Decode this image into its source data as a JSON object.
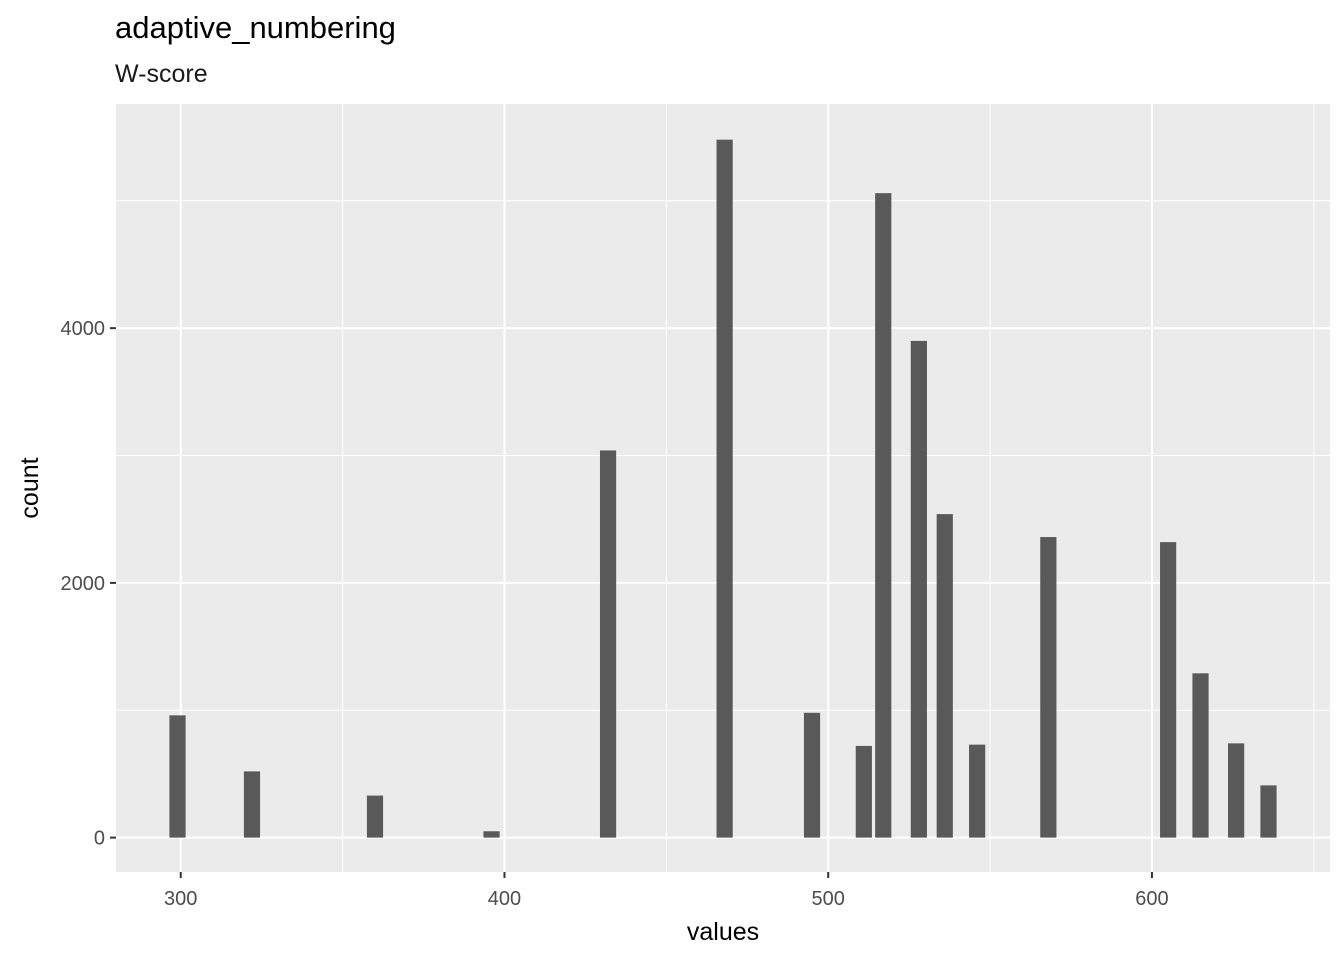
{
  "chart_data": {
    "type": "bar",
    "title": "adaptive_numbering",
    "subtitle": "W-score",
    "xlabel": "values",
    "ylabel": "count",
    "xlim": [
      280,
      655
    ],
    "ylim": [
      -270,
      5760
    ],
    "xticks": [
      300,
      400,
      500,
      600
    ],
    "yticks": [
      0,
      2000,
      4000
    ],
    "xtick_labels": [
      "300",
      "400",
      "500",
      "600"
    ],
    "ytick_labels": [
      "0",
      "2000",
      "4000"
    ],
    "bar_width": 5,
    "grid": true,
    "background": "#EBEBEB",
    "bar_color": "#595959",
    "grid_color": "#FFFFFF",
    "x": [
      299,
      322,
      360,
      396,
      432,
      468,
      495,
      511,
      517,
      528,
      536,
      546,
      568,
      605,
      615,
      626,
      636
    ],
    "values": [
      960,
      520,
      330,
      50,
      3040,
      5480,
      980,
      720,
      5060,
      3900,
      2540,
      730,
      2360,
      2320,
      1290,
      740,
      410
    ]
  }
}
